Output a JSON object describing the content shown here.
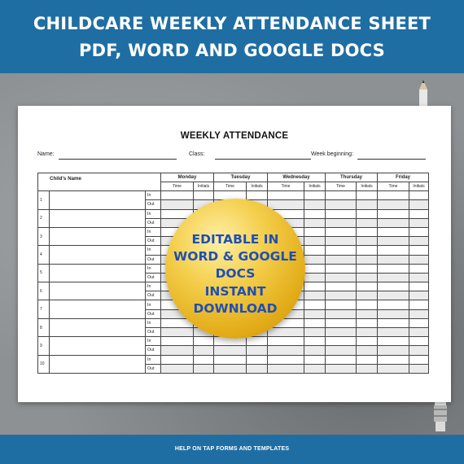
{
  "banner": {
    "line1": "CHILDCARE WEEKLY ATTENDANCE SHEET",
    "line2": "PDF, WORD AND GOOGLE DOCS"
  },
  "sheet": {
    "title": "WEEKLY ATTENDANCE",
    "fields": {
      "name": "Name:",
      "class": "Class:",
      "week": "Week beginning:"
    },
    "name_col_header": "Child's Name",
    "days": [
      "Monday",
      "Tuesday",
      "Wednesday",
      "Thursday",
      "Friday"
    ],
    "sub_headers": {
      "time": "Time",
      "initials": "Initials"
    },
    "row_labels": {
      "in": "In",
      "out": "Out"
    },
    "children": [
      "1",
      "2",
      "3",
      "4",
      "5",
      "6",
      "7",
      "8",
      "9",
      "10"
    ]
  },
  "badge": {
    "lines": [
      "EDITABLE IN",
      "WORD & GOOGLE",
      "DOCS",
      "INSTANT",
      "DOWNLOAD"
    ]
  },
  "footer": {
    "text": "HELP ON TAP FORMS AND TEMPLATES"
  },
  "colors": {
    "banner": "#1f6ea3",
    "badge_text": "#1f4fb6",
    "badge_gold": "#e3ad19"
  }
}
